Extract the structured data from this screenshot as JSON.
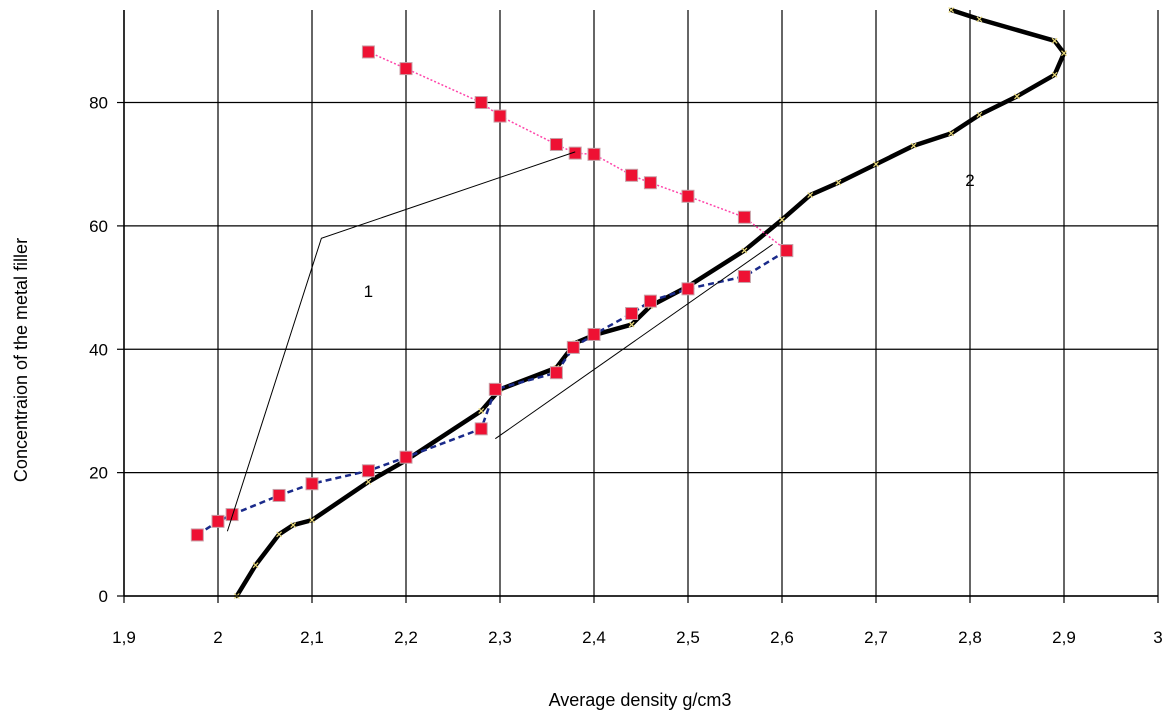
{
  "chart_data": {
    "type": "line",
    "title": "",
    "xlabel": "Average density g/cm3",
    "ylabel": "Concentraion of the metal filler",
    "xlim": [
      1.9,
      3.0
    ],
    "ylim": [
      0,
      95
    ],
    "x_ticks": [
      {
        "value": 1.9,
        "label": "1,9"
      },
      {
        "value": 2.0,
        "label": "2"
      },
      {
        "value": 2.1,
        "label": "2,1"
      },
      {
        "value": 2.2,
        "label": "2,2"
      },
      {
        "value": 2.3,
        "label": "2,3"
      },
      {
        "value": 2.4,
        "label": "2,4"
      },
      {
        "value": 2.5,
        "label": "2,5"
      },
      {
        "value": 2.6,
        "label": "2,6"
      },
      {
        "value": 2.7,
        "label": "2,7"
      },
      {
        "value": 2.8,
        "label": "2,8"
      },
      {
        "value": 2.9,
        "label": "2,9"
      },
      {
        "value": 3.0,
        "label": "3"
      }
    ],
    "y_ticks": [
      {
        "value": 0,
        "label": "0"
      },
      {
        "value": 20,
        "label": "20"
      },
      {
        "value": 40,
        "label": "40"
      },
      {
        "value": 60,
        "label": "60"
      },
      {
        "value": 80,
        "label": "80"
      }
    ],
    "grid": true,
    "legend": "none",
    "colors": {
      "pink_series": "#ff44aa",
      "marker_fill": "#ee1133",
      "dashed_series": "#1a2a8a",
      "black_curve": "#000000",
      "grid": "#000000"
    },
    "series": [
      {
        "style": "pink-dotted-square-markers",
        "x": [
          2.16,
          2.2,
          2.28,
          2.3,
          2.36,
          2.38,
          2.4,
          2.44,
          2.46,
          2.5,
          2.56,
          2.605
        ],
        "y": [
          88.2,
          85.5,
          80,
          77.8,
          73.2,
          71.8,
          71.6,
          68.2,
          67,
          64.8,
          61.4,
          56
        ]
      },
      {
        "style": "navy-dashed-square-markers",
        "x": [
          1.978,
          2.0,
          2.015,
          2.065,
          2.1,
          2.16,
          2.2,
          2.28,
          2.295,
          2.36,
          2.378,
          2.4,
          2.44,
          2.46,
          2.5,
          2.56,
          2.605
        ],
        "y": [
          9.9,
          12.1,
          13.2,
          16.3,
          18.2,
          20.3,
          22.5,
          27.1,
          33.5,
          36.2,
          40.3,
          42.4,
          45.8,
          47.8,
          49.8,
          51.8,
          56
        ]
      },
      {
        "style": "black-thick-curve",
        "x": [
          2.02,
          2.04,
          2.065,
          2.08,
          2.1,
          2.16,
          2.2,
          2.28,
          2.3,
          2.36,
          2.38,
          2.4,
          2.44,
          2.46,
          2.5,
          2.56,
          2.6,
          2.63,
          2.66,
          2.7,
          2.74,
          2.78,
          2.81,
          2.85,
          2.89,
          2.9,
          2.89,
          2.81,
          2.78
        ],
        "y": [
          0,
          5,
          10,
          11.5,
          12.3,
          18.5,
          22,
          30,
          33.5,
          37,
          41,
          42.3,
          44,
          47,
          50.2,
          56,
          61,
          65,
          67,
          70,
          73,
          75,
          78,
          81,
          84.5,
          88,
          90,
          93.5,
          95
        ]
      }
    ],
    "annotations": [
      {
        "text": "1",
        "x": 2.16,
        "y": 48.5
      },
      {
        "text": "2",
        "x": 2.8,
        "y": 66.5
      }
    ],
    "leader_lines": [
      {
        "points": [
          [
            2.01,
            10.5
          ],
          [
            2.11,
            58
          ],
          [
            2.38,
            72
          ]
        ]
      },
      {
        "points": [
          [
            2.295,
            25.5
          ],
          [
            2.59,
            57
          ]
        ]
      }
    ]
  }
}
